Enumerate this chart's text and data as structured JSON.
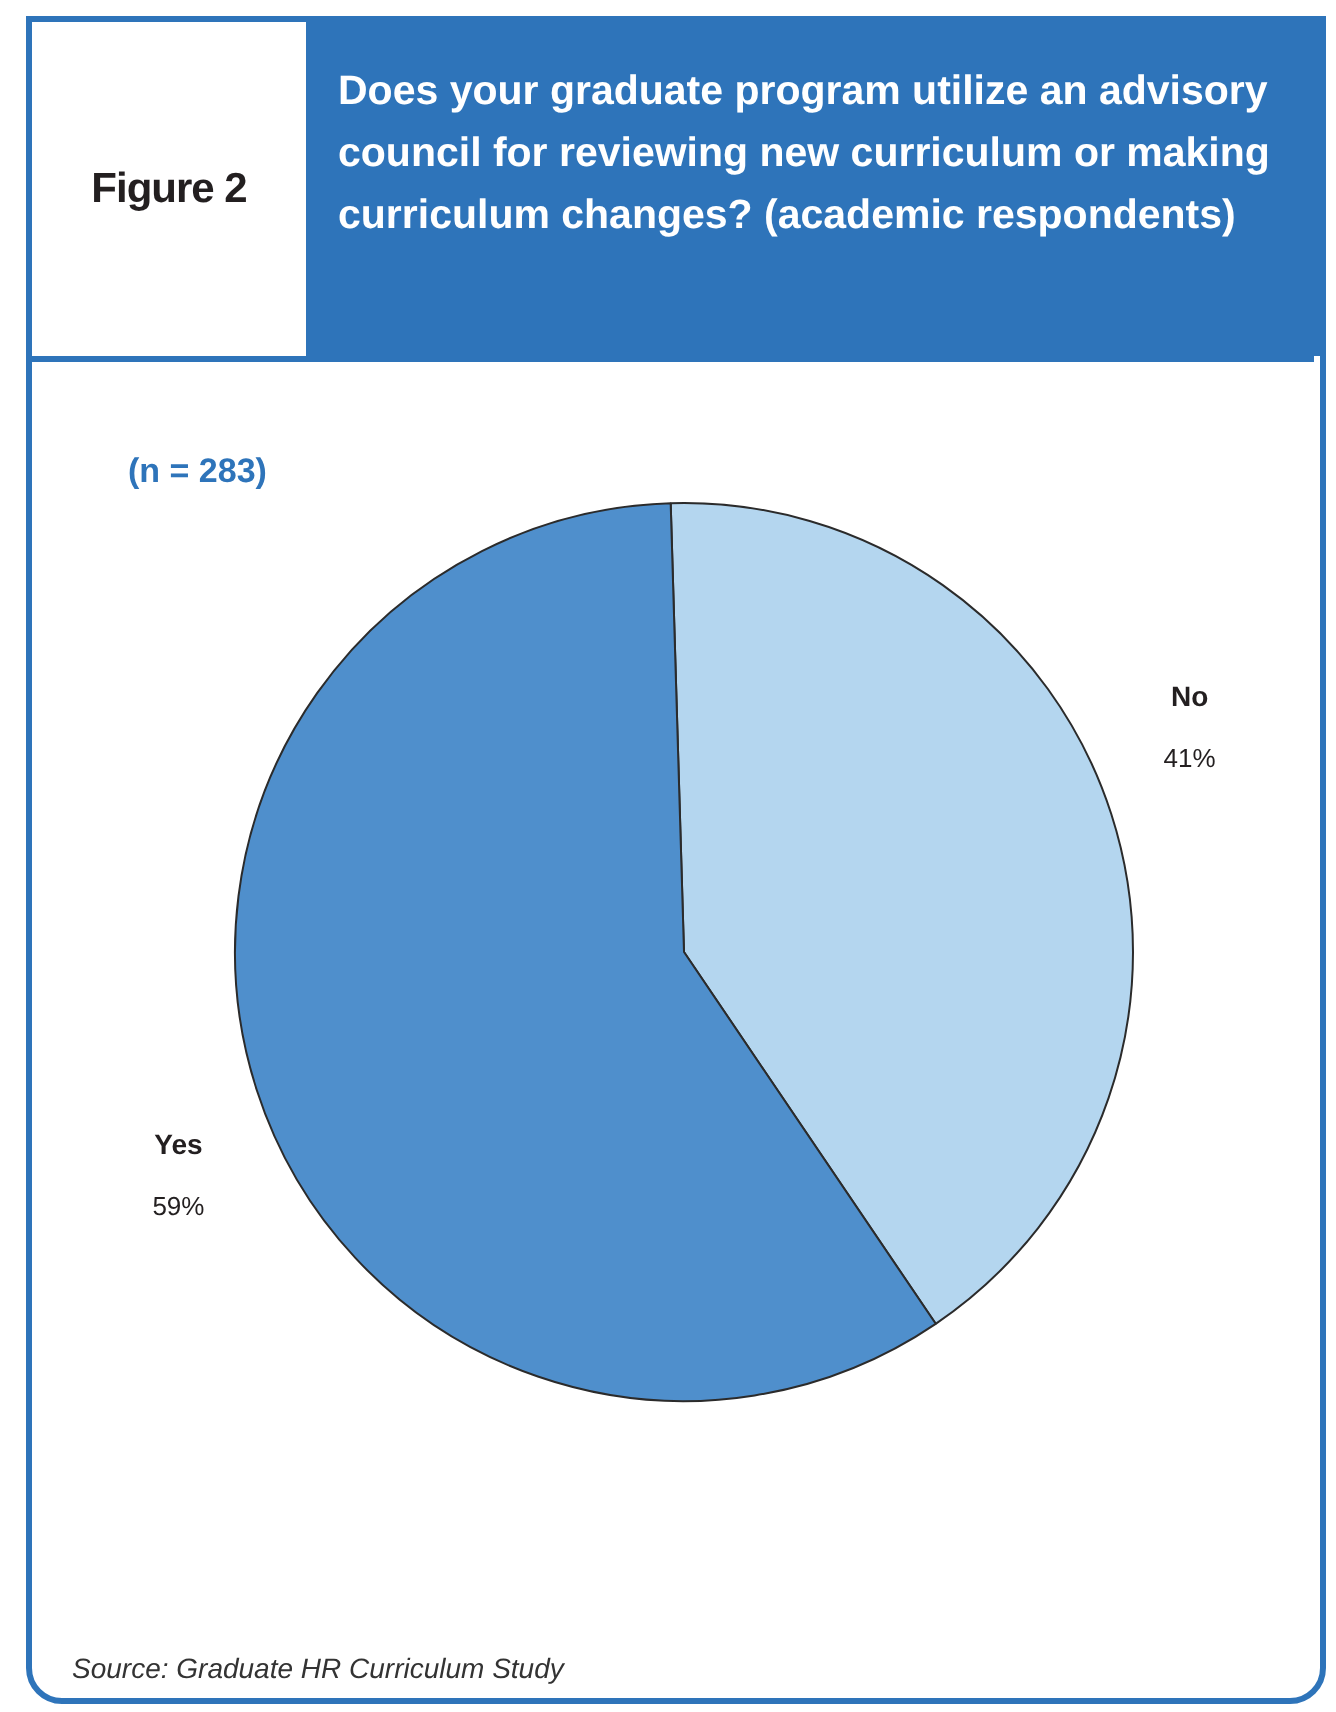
{
  "chart_data": {
    "type": "pie",
    "title": "Does your graduate program utilize an advisory council for reviewing new curriculum or making curriculum changes? (academic respondents)",
    "subtitle": "(n = 283)",
    "annotations": [
      "Figure 2",
      "Source: Graduate HR Curriculum Study"
    ],
    "categories": [
      "No",
      "Yes"
    ],
    "values": [
      41,
      59
    ],
    "colors": [
      "#b4d6ef",
      "#4f8fcc"
    ],
    "value_labels": [
      "41%",
      "59%"
    ],
    "legend": false
  }
}
